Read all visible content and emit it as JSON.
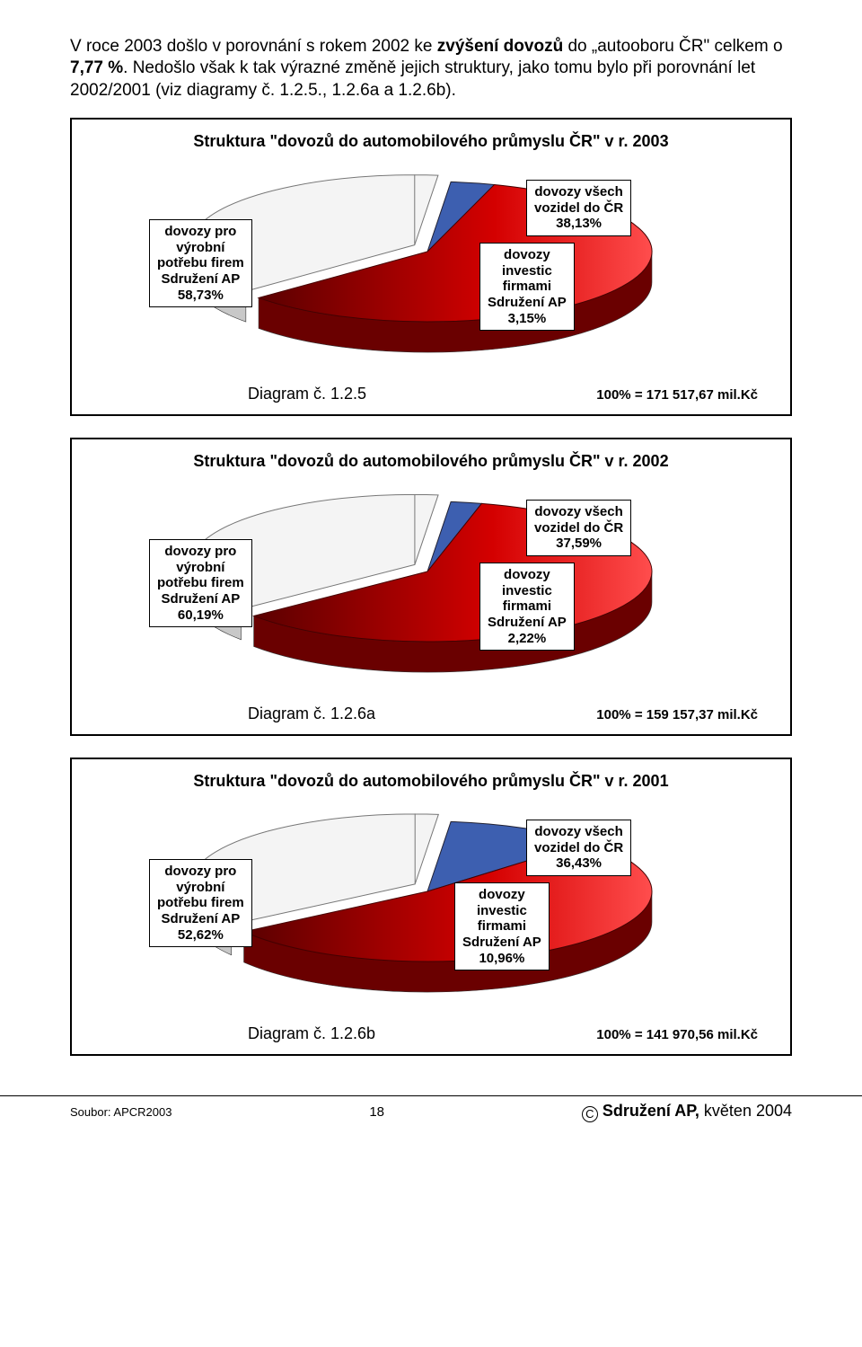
{
  "intro": {
    "pre": "V roce 2003 došlo v porovnání s rokem 2002 ke ",
    "bold1": "zvýšení dovozů",
    "mid1": " do „autooboru ČR\" celkem o ",
    "bold2": "7,77 %",
    "rest": ". Nedošlo však k tak výrazné změně jejich struktury, jako tomu bylo při porovnání let 2002/2001 (viz diagramy č. 1.2.5., 1.2.6a a 1.2.6b)."
  },
  "charts": [
    {
      "title": "Struktura \"dovozů do automobilového průmyslu ČR\" v r. 2003",
      "caption": "Diagram č. 1.2.5",
      "total": "100% =  171 517,67 mil.Kč",
      "labels": {
        "left": "dovozy pro\nvýrobní\npotřebu firem\nSdružení AP\n58,73%",
        "rightTop": "dovozy všech\nvozidel do ČR\n38,13%",
        "rightMid": "dovozy\ninvestic\nfirmami\nSdružení AP\n3,15%"
      },
      "slices": {
        "red": 58.73,
        "blue": 3.15,
        "white": 38.13
      },
      "colors": {
        "red_start": "#5a0000",
        "red_end": "#ff4d4d",
        "blue": "#3d5fb0",
        "white": "#f4f4f4",
        "rim": "#9a9a9a"
      }
    },
    {
      "title": "Struktura \"dovozů do automobilového průmyslu ČR\" v r. 2002",
      "caption": "Diagram č. 1.2.6a",
      "total": "100% =  159 157,37 mil.Kč",
      "labels": {
        "left": "dovozy pro\nvýrobní\npotřebu firem\nSdružení AP\n60,19%",
        "rightTop": "dovozy všech\nvozidel do ČR\n37,59%",
        "rightMid": "dovozy\ninvestic\nfirmami\nSdružení AP\n2,22%"
      },
      "slices": {
        "red": 60.19,
        "blue": 2.22,
        "white": 37.59
      },
      "colors": {
        "red_start": "#5a0000",
        "red_end": "#ff4d4d",
        "blue": "#3d5fb0",
        "white": "#f4f4f4",
        "rim": "#9a9a9a"
      }
    },
    {
      "title": "Struktura \"dovozů do automobilového průmyslu ČR\" v r. 2001",
      "caption": "Diagram č. 1.2.6b",
      "total": "100% =  141 970,56 mil.Kč",
      "labels": {
        "left": "dovozy pro\nvýrobní\npotřebu firem\nSdružení AP\n52,62%",
        "rightTop": "dovozy všech\nvozidel do ČR\n36,43%",
        "rightMid": "dovozy\ninvestic\nfirmami\nSdružení AP\n10,96%"
      },
      "slices": {
        "red": 52.62,
        "blue": 10.96,
        "white": 36.43
      },
      "colors": {
        "red_start": "#5a0000",
        "red_end": "#ff4d4d",
        "blue": "#3d5fb0",
        "white": "#f4f4f4",
        "rim": "#9a9a9a"
      }
    }
  ],
  "footer": {
    "left": "Soubor: APCR2003",
    "mid": "18",
    "assoc": "Sdružení AP,",
    "date": " květen 2004"
  }
}
